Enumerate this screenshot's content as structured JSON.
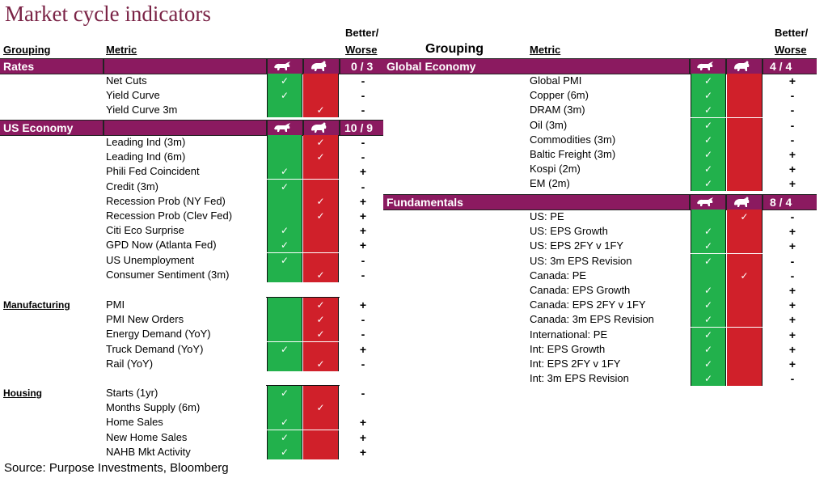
{
  "title": "Market cycle indicators",
  "headers": {
    "left_grouping": "Grouping",
    "left_metric": "Metric",
    "left_better_1": "Better/",
    "left_better_2": "Worse",
    "right_grouping": "Grouping",
    "right_metric": "Metric",
    "right_better_1": "Better/",
    "right_better_2": "Worse"
  },
  "categories": {
    "rates": {
      "label": "Rates",
      "score": "0 / 3"
    },
    "us_economy": {
      "label": "US Economy",
      "score": "10 / 9"
    },
    "global_economy": {
      "label": "Global Economy",
      "score": "4 / 4"
    },
    "fundamentals": {
      "label": "Fundamentals",
      "score": "8 / 4"
    }
  },
  "groups": {
    "manufacturing": "Manufacturing",
    "housing": "Housing"
  },
  "check_glyph": "✓",
  "rows": {
    "rates": [
      {
        "metric": "Net Cuts",
        "signal": "bull",
        "change": "-"
      },
      {
        "metric": "Yield Curve",
        "signal": "bull",
        "change": "-"
      },
      {
        "metric": "Yield Curve 3m",
        "signal": "bear",
        "change": "-"
      }
    ],
    "us_economy": [
      {
        "metric": "Leading Ind (3m)",
        "signal": "bear",
        "change": "-"
      },
      {
        "metric": "Leading Ind (6m)",
        "signal": "bear",
        "change": "-"
      },
      {
        "metric": "Phili Fed Coincident",
        "signal": "bull",
        "change": "+"
      },
      {
        "metric": "Credit (3m)",
        "signal": "bull",
        "change": "-"
      },
      {
        "metric": "Recession Prob (NY Fed)",
        "signal": "bear",
        "change": "+"
      },
      {
        "metric": "Recession Prob (Clev Fed)",
        "signal": "bear",
        "change": "+"
      },
      {
        "metric": "Citi Eco Surprise",
        "signal": "bull",
        "change": "+"
      },
      {
        "metric": "GPD Now (Atlanta Fed)",
        "signal": "bull",
        "change": "+"
      },
      {
        "metric": "US Unemployment",
        "signal": "bull",
        "change": "-"
      },
      {
        "metric": "Consumer Sentiment (3m)",
        "signal": "bear",
        "change": "-"
      }
    ],
    "manufacturing": [
      {
        "metric": "PMI",
        "signal": "bear",
        "change": "+"
      },
      {
        "metric": "PMI New Orders",
        "signal": "bear",
        "change": "-"
      },
      {
        "metric": "Energy Demand (YoY)",
        "signal": "bear",
        "change": "-"
      },
      {
        "metric": "Truck Demand (YoY)",
        "signal": "bull",
        "change": "+"
      },
      {
        "metric": "Rail (YoY)",
        "signal": "bear",
        "change": "-"
      }
    ],
    "housing": [
      {
        "metric": "Starts (1yr)",
        "signal": "bull",
        "change": "-"
      },
      {
        "metric": "Months Supply (6m)",
        "signal": "bear",
        "change": ""
      },
      {
        "metric": "Home Sales",
        "signal": "bull",
        "change": "+"
      },
      {
        "metric": "New Home Sales",
        "signal": "bull",
        "change": "+"
      },
      {
        "metric": "NAHB Mkt Activity",
        "signal": "bull",
        "change": "+"
      }
    ],
    "global_economy": [
      {
        "metric": "Global PMI",
        "signal": "bull",
        "change": "+"
      },
      {
        "metric": "Copper (6m)",
        "signal": "bull",
        "change": "-"
      },
      {
        "metric": "DRAM (3m)",
        "signal": "bull",
        "change": "-"
      },
      {
        "metric": "Oil (3m)",
        "signal": "bull",
        "change": "-"
      },
      {
        "metric": "Commodities (3m)",
        "signal": "bull",
        "change": "-"
      },
      {
        "metric": "Baltic Freight (3m)",
        "signal": "bull",
        "change": "+"
      },
      {
        "metric": "Kospi (2m)",
        "signal": "bull",
        "change": "+"
      },
      {
        "metric": "EM (2m)",
        "signal": "bull",
        "change": "+"
      }
    ],
    "fundamentals": [
      {
        "metric": "US: PE",
        "signal": "bear",
        "change": "-"
      },
      {
        "metric": "US: EPS Growth",
        "signal": "bull",
        "change": "+"
      },
      {
        "metric": "US: EPS 2FY v 1FY",
        "signal": "bull",
        "change": "+"
      },
      {
        "metric": "US: 3m EPS Revision",
        "signal": "bull",
        "change": "-"
      },
      {
        "metric": "Canada: PE",
        "signal": "bear",
        "change": "-"
      },
      {
        "metric": "Canada: EPS Growth",
        "signal": "bull",
        "change": "+"
      },
      {
        "metric": "Canada: EPS 2FY v 1FY",
        "signal": "bull",
        "change": "+"
      },
      {
        "metric": "Canada: 3m EPS Revision",
        "signal": "bull",
        "change": "+"
      },
      {
        "metric": "International: PE",
        "signal": "bull",
        "change": "+"
      },
      {
        "metric": "Int: EPS Growth",
        "signal": "bull",
        "change": "+"
      },
      {
        "metric": "Int: EPS 2FY v 1FY",
        "signal": "bull",
        "change": "+"
      },
      {
        "metric": "Int: 3m EPS Revision",
        "signal": "bull",
        "change": "-"
      }
    ]
  },
  "icons": {
    "bull": "bull-icon",
    "bear": "bear-icon"
  },
  "colors": {
    "title": "#7a2346",
    "category_bar": "#8b1a60",
    "bull_cell": "#22b14c",
    "bear_cell": "#d0202a"
  },
  "source": "Source: Purpose Investments, Bloomberg"
}
